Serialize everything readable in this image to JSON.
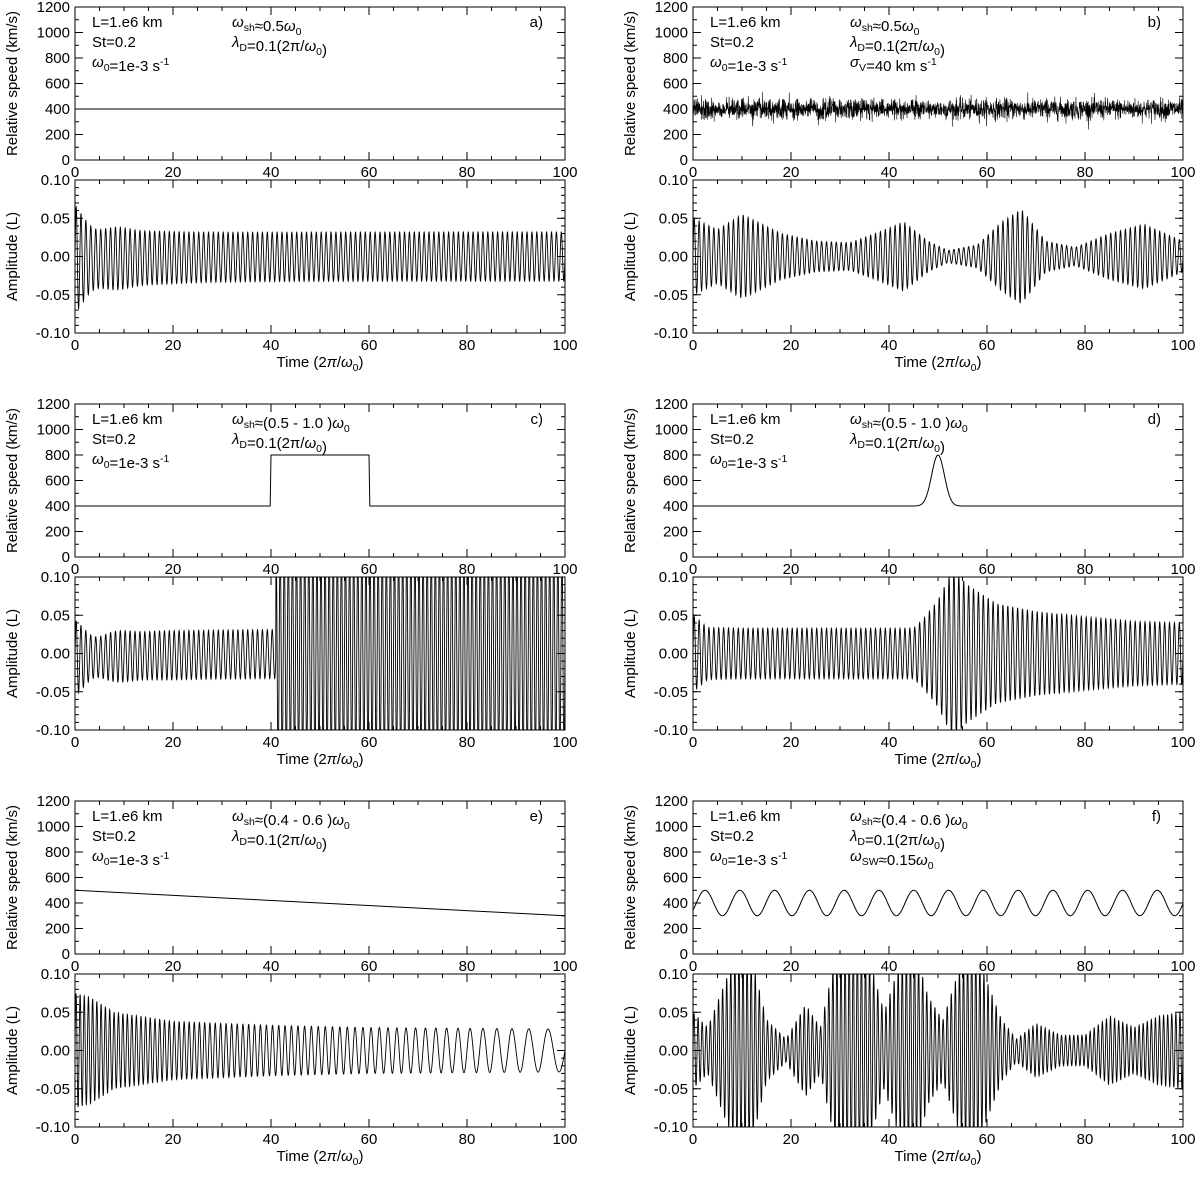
{
  "figure": {
    "time_unit_label": "Time (2π/ω0)",
    "speed_label": "Relative speed (km/s)",
    "amplitude_label": "Amplitude (L)"
  },
  "chart_data": [
    {
      "panel": "a)",
      "type": "line",
      "speed": {
        "ylabel": "Relative speed (km/s)",
        "xlim": [
          0,
          100
        ],
        "ylim": [
          0,
          1200
        ],
        "yticks": [
          "0",
          "200",
          "400",
          "600",
          "800",
          "1000",
          "1200"
        ],
        "xticks": [
          "0",
          "20",
          "40",
          "60",
          "80",
          "100"
        ],
        "profile": {
          "kind": "constant",
          "base": 400
        }
      },
      "amplitude": {
        "ylabel": "Amplitude (L)",
        "xlabel": "Time (2π/ω0)",
        "xlim": [
          0,
          100
        ],
        "ylim": [
          -0.1,
          0.1
        ],
        "yticks": [
          "-0.10",
          "-0.05",
          "0.00",
          "0.05",
          "0.10"
        ],
        "xticks": [
          "0",
          "20",
          "40",
          "60",
          "80",
          "100"
        ],
        "signal": {
          "kind": "steady",
          "periods_per_unit": 0.5,
          "amp": 0.032,
          "transient_amp": 0.035,
          "transient_decay": 25
        }
      },
      "annotations_left": [
        "L=1.e6 km",
        "St=0.2",
        "ω0=1e-3 s-1"
      ],
      "annotations_right": [
        "ωsh≈0.5ω0",
        "λD=0.1(2π/ω0)"
      ]
    },
    {
      "panel": "b)",
      "type": "line",
      "speed": {
        "ylabel": "Relative speed (km/s)",
        "xlim": [
          0,
          100
        ],
        "ylim": [
          0,
          1200
        ],
        "yticks": [
          "0",
          "200",
          "400",
          "600",
          "800",
          "1000",
          "1200"
        ],
        "xticks": [
          "0",
          "20",
          "40",
          "60",
          "80",
          "100"
        ],
        "profile": {
          "kind": "noise",
          "base": 400,
          "sigma": 40
        }
      },
      "amplitude": {
        "ylabel": "Amplitude (L)",
        "xlabel": "Time (2π/ω0)",
        "xlim": [
          0,
          100
        ],
        "ylim": [
          -0.1,
          0.1
        ],
        "yticks": [
          "-0.10",
          "-0.05",
          "0.00",
          "0.05",
          "0.10"
        ],
        "xticks": [
          "0",
          "20",
          "40",
          "60",
          "80",
          "100"
        ],
        "signal": {
          "kind": "envelope",
          "periods_per_unit": 0.5,
          "env_t": [
            0,
            5,
            10,
            18,
            25,
            32,
            38,
            43,
            48,
            52,
            58,
            63,
            67,
            72,
            78,
            85,
            92,
            100
          ],
          "env_a": [
            0.05,
            0.035,
            0.055,
            0.03,
            0.02,
            0.018,
            0.032,
            0.045,
            0.02,
            0.008,
            0.015,
            0.045,
            0.062,
            0.02,
            0.012,
            0.03,
            0.042,
            0.02
          ]
        }
      },
      "annotations_left": [
        "L=1.e6 km",
        "St=0.2",
        "ω0=1e-3 s-1"
      ],
      "annotations_right": [
        "ωsh≈0.5ω0",
        "λD=0.1(2π/ω0)",
        "σV=40 km s-1"
      ]
    },
    {
      "panel": "c)",
      "type": "line",
      "speed": {
        "ylabel": "Relative speed (km/s)",
        "xlim": [
          0,
          100
        ],
        "ylim": [
          0,
          1200
        ],
        "yticks": [
          "0",
          "200",
          "400",
          "600",
          "800",
          "1000",
          "1200"
        ],
        "xticks": [
          "0",
          "20",
          "40",
          "60",
          "80",
          "100"
        ],
        "profile": {
          "kind": "step",
          "base": 400,
          "high": 800,
          "t1": 40,
          "t2": 60
        }
      },
      "amplitude": {
        "ylabel": "Amplitude (L)",
        "xlabel": "Time (2π/ω0)",
        "xlim": [
          0,
          100
        ],
        "ylim": [
          -0.1,
          0.1
        ],
        "yticks": [
          "-0.10",
          "-0.05",
          "0.00",
          "0.05",
          "0.10"
        ],
        "xticks": [
          "0",
          "20",
          "40",
          "60",
          "80",
          "100"
        ],
        "signal": {
          "kind": "step",
          "periods_per_unit": 0.5,
          "high_periods_per_unit": 1.2,
          "amp": 0.032,
          "high_amp": 0.14,
          "t1": 41,
          "transient_amp": 0.035,
          "transient_decay": 25
        }
      },
      "annotations_left": [
        "L=1.e6 km",
        "St=0.2",
        "ω0=1e-3 s-1"
      ],
      "annotations_right": [
        "ωsh≈(0.5 - 1.0 )ω0",
        "λD=0.1(2π/ω0)"
      ]
    },
    {
      "panel": "d)",
      "type": "line",
      "speed": {
        "ylabel": "Relative speed (km/s)",
        "xlim": [
          0,
          100
        ],
        "ylim": [
          0,
          1200
        ],
        "yticks": [
          "0",
          "200",
          "400",
          "600",
          "800",
          "1000",
          "1200"
        ],
        "xticks": [
          "0",
          "20",
          "40",
          "60",
          "80",
          "100"
        ],
        "profile": {
          "kind": "gaussian",
          "base": 400,
          "peak": 800,
          "center": 50,
          "width": 1.3
        }
      },
      "amplitude": {
        "ylabel": "Amplitude (L)",
        "xlabel": "Time (2π/ω0)",
        "xlim": [
          0,
          100
        ],
        "ylim": [
          -0.1,
          0.1
        ],
        "yticks": [
          "-0.10",
          "-0.05",
          "0.00",
          "0.05",
          "0.10"
        ],
        "xticks": [
          "0",
          "20",
          "40",
          "60",
          "80",
          "100"
        ],
        "signal": {
          "kind": "envelope",
          "periods_per_unit": 0.5,
          "env_t": [
            0,
            3,
            10,
            45,
            47,
            50,
            53,
            56,
            62,
            70,
            80,
            90,
            100
          ],
          "env_a": [
            0.05,
            0.034,
            0.033,
            0.033,
            0.045,
            0.07,
            0.11,
            0.09,
            0.065,
            0.055,
            0.048,
            0.042,
            0.04
          ]
        }
      },
      "annotations_left": [
        "L=1.e6 km",
        "St=0.2",
        "ω0=1e-3 s-1"
      ],
      "annotations_right": [
        "ωsh≈(0.5 - 1.0 )ω0",
        "λD=0.1(2π/ω0)"
      ]
    },
    {
      "panel": "e)",
      "type": "line",
      "speed": {
        "ylabel": "Relative speed (km/s)",
        "xlim": [
          0,
          100
        ],
        "ylim": [
          0,
          1200
        ],
        "yticks": [
          "0",
          "200",
          "400",
          "600",
          "800",
          "1000",
          "1200"
        ],
        "xticks": [
          "0",
          "20",
          "40",
          "60",
          "80",
          "100"
        ],
        "profile": {
          "kind": "linear",
          "start": 500,
          "end": 300
        }
      },
      "amplitude": {
        "ylabel": "Amplitude (L)",
        "xlabel": "Time (2π/ω0)",
        "xlim": [
          0,
          100
        ],
        "ylim": [
          -0.1,
          0.1
        ],
        "yticks": [
          "-0.10",
          "-0.05",
          "0.00",
          "0.05",
          "0.10"
        ],
        "xticks": [
          "0",
          "20",
          "40",
          "60",
          "80",
          "100"
        ],
        "signal": {
          "kind": "chirp",
          "f_start": 0.6,
          "f_end": 0.2,
          "env_t": [
            0,
            3,
            8,
            20,
            40,
            60,
            100
          ],
          "env_a": [
            0.075,
            0.07,
            0.05,
            0.038,
            0.033,
            0.03,
            0.028
          ]
        }
      },
      "annotations_left": [
        "L=1.e6 km",
        "St=0.2",
        "ω0=1e-3 s-1"
      ],
      "annotations_right": [
        "ωsh≈(0.4 - 0.6 )ω0",
        "λD=0.1(2π/ω0)"
      ]
    },
    {
      "panel": "f)",
      "type": "line",
      "speed": {
        "ylabel": "Relative speed (km/s)",
        "xlim": [
          0,
          100
        ],
        "ylim": [
          0,
          1200
        ],
        "yticks": [
          "0",
          "200",
          "400",
          "600",
          "800",
          "1000",
          "1200"
        ],
        "xticks": [
          "0",
          "20",
          "40",
          "60",
          "80",
          "100"
        ],
        "profile": {
          "kind": "sine",
          "base": 400,
          "amp": 100,
          "period": 7.1
        }
      },
      "amplitude": {
        "ylabel": "Amplitude (L)",
        "xlabel": "Time (2π/ω0)",
        "xlim": [
          0,
          100
        ],
        "ylim": [
          -0.1,
          0.1
        ],
        "yticks": [
          "-0.10",
          "-0.05",
          "0.00",
          "0.05",
          "0.10"
        ],
        "xticks": [
          "0",
          "20",
          "40",
          "60",
          "80",
          "100"
        ],
        "signal": {
          "kind": "envelope",
          "periods_per_unit": 0.6,
          "env_t": [
            0,
            3,
            6,
            9,
            12,
            15,
            19,
            23,
            26,
            29,
            33,
            36,
            39,
            42,
            45,
            48,
            51,
            54,
            57,
            60,
            63,
            66,
            70,
            75,
            80,
            85,
            90,
            95,
            100
          ],
          "env_a": [
            0.05,
            0.03,
            0.08,
            0.13,
            0.12,
            0.04,
            0.015,
            0.06,
            0.03,
            0.12,
            0.14,
            0.12,
            0.05,
            0.11,
            0.14,
            0.07,
            0.04,
            0.1,
            0.14,
            0.09,
            0.04,
            0.015,
            0.035,
            0.02,
            0.02,
            0.045,
            0.03,
            0.045,
            0.05
          ]
        }
      },
      "annotations_left": [
        "L=1.e6 km",
        "St=0.2",
        "ω0=1e-3 s-1"
      ],
      "annotations_right": [
        "ωsh≈(0.4 - 0.6 )ω0",
        "λD=0.1(2π/ω0)",
        "ωSW≈0.15ω0"
      ]
    }
  ]
}
